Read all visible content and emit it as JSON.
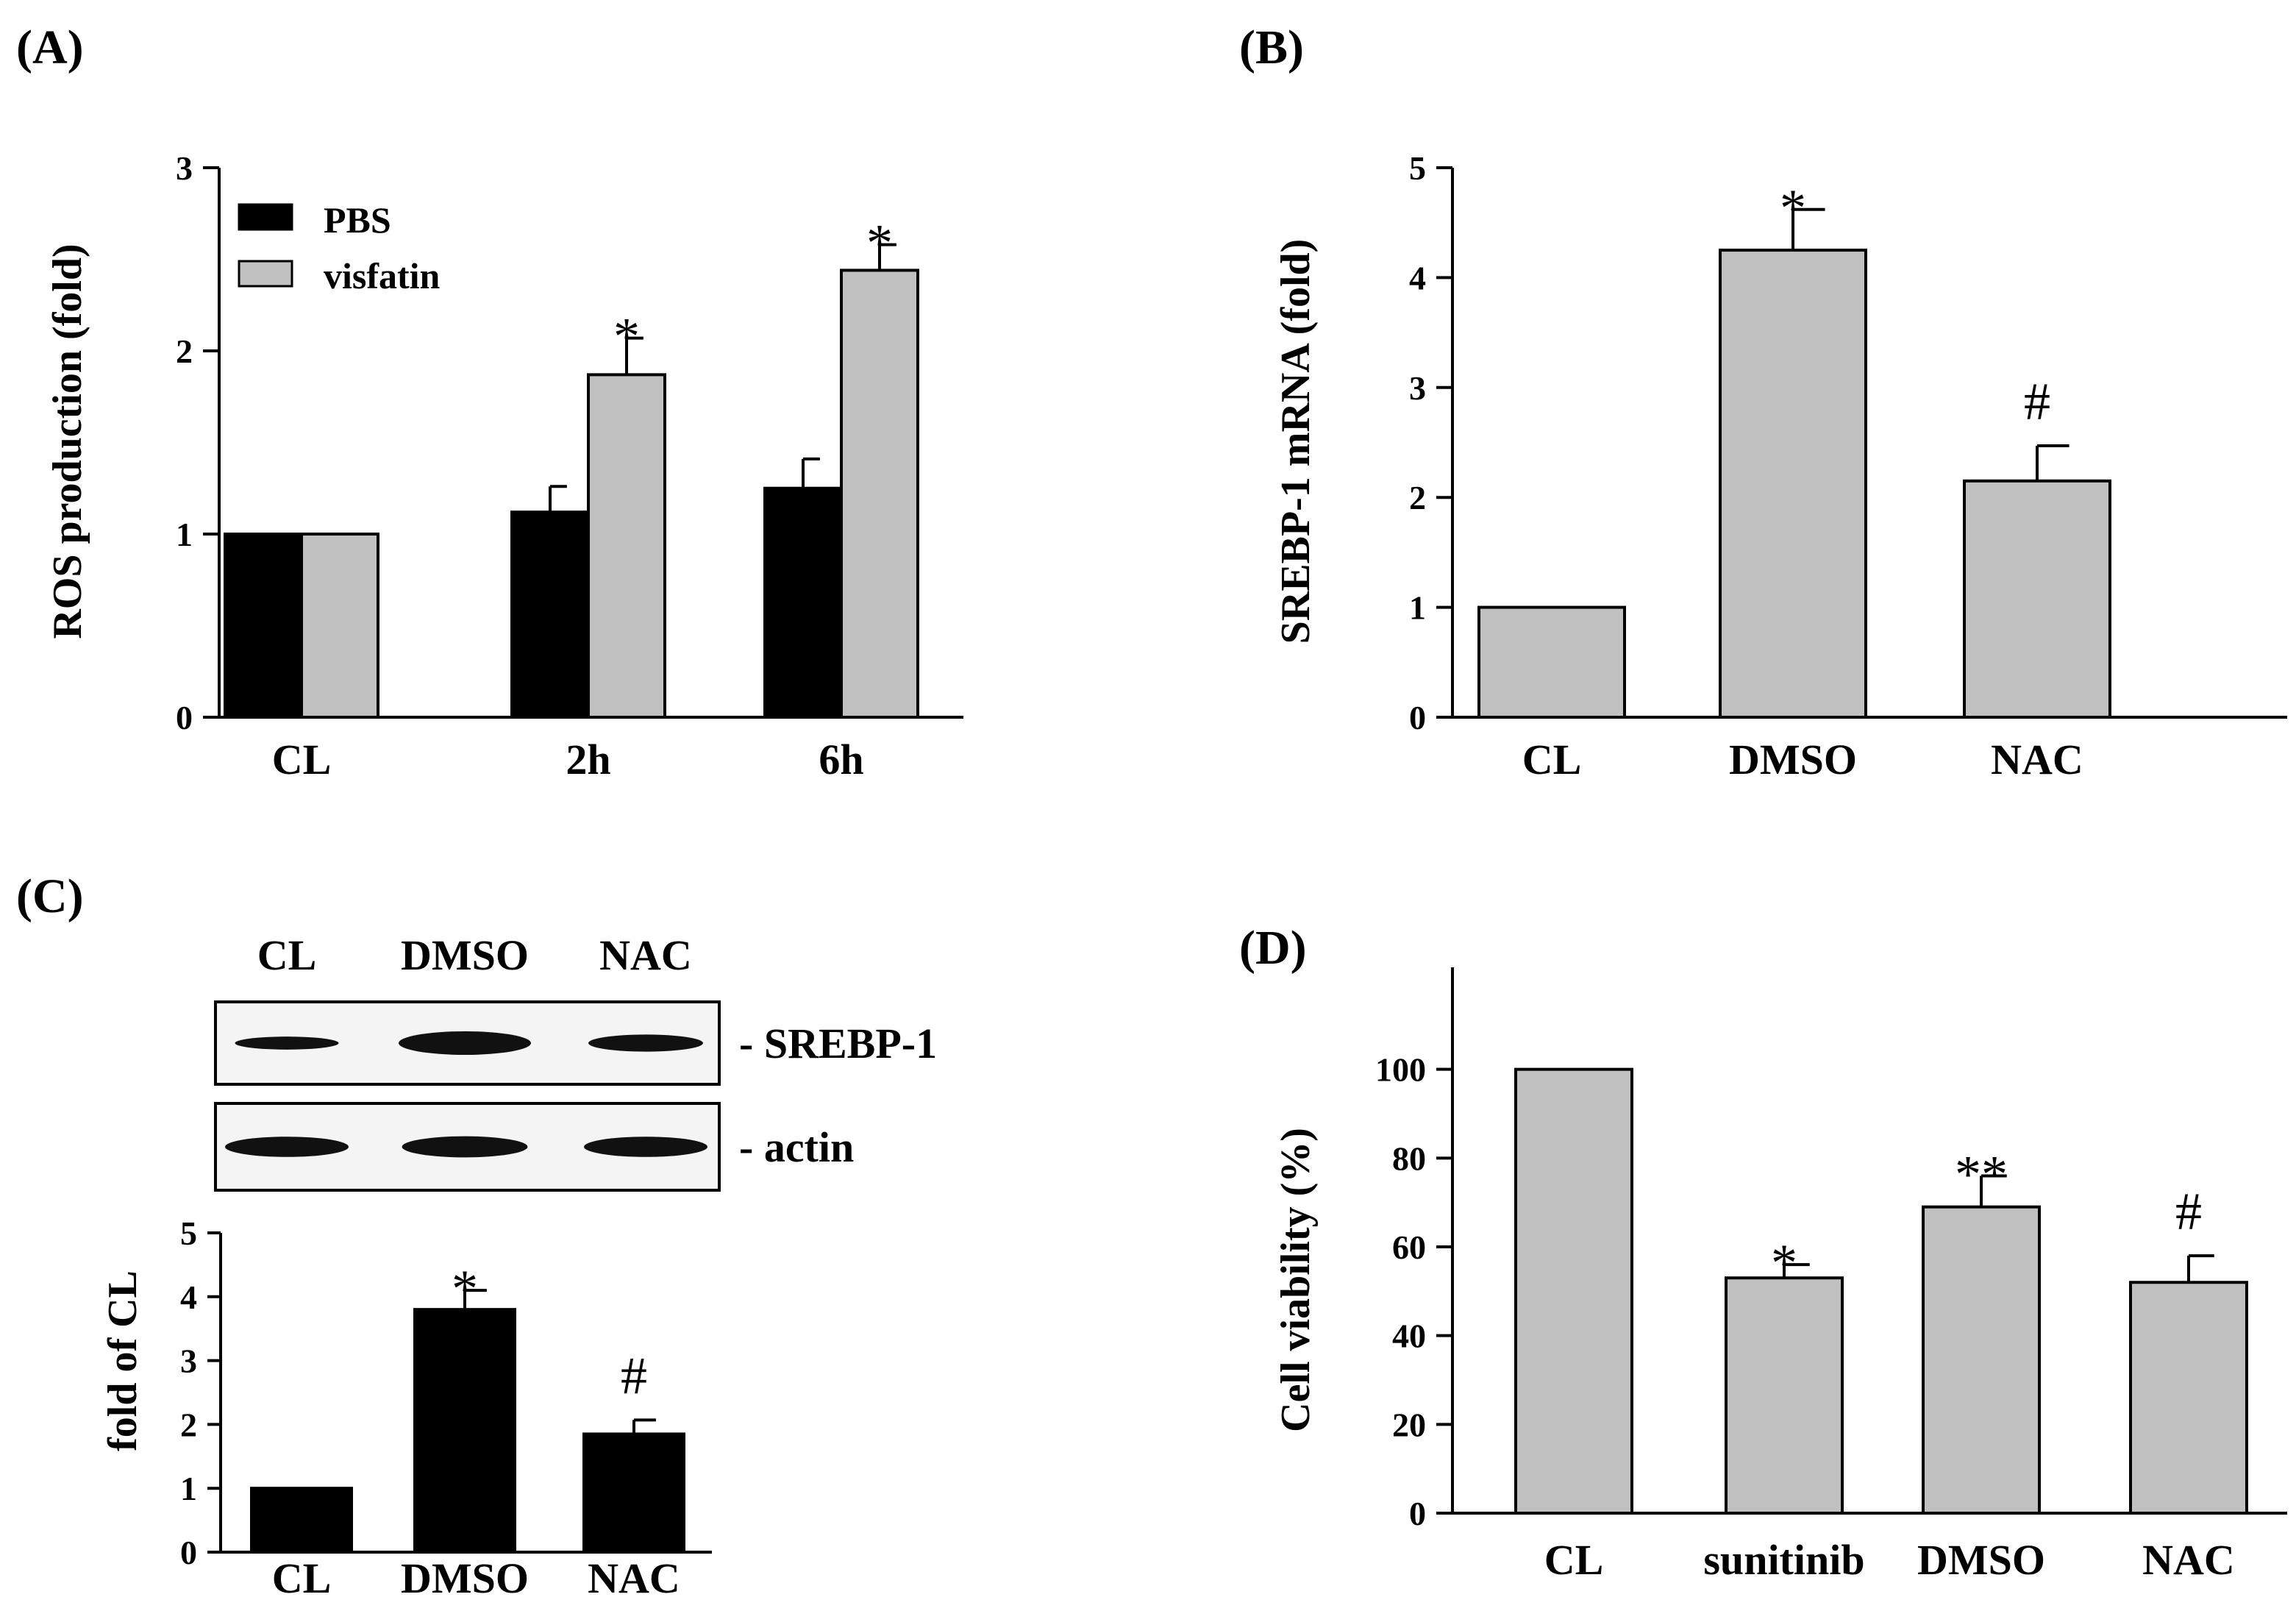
{
  "colors": {
    "black_bar": "#000000",
    "gray_bar": "#c0c0c0",
    "axis": "#000000"
  },
  "chart_data": [
    {
      "id": "A",
      "panel_label": "(A)",
      "type": "bar",
      "title": "",
      "ylabel": "ROS production (fold)",
      "xlabel": "",
      "ylim": [
        0,
        3
      ],
      "yticks": [
        0,
        1,
        2,
        3
      ],
      "categories": [
        "CL",
        "2h",
        "6h"
      ],
      "series": [
        {
          "name": "PBS",
          "color": "#000000",
          "values": [
            1.0,
            1.12,
            1.25
          ],
          "errors": [
            0,
            0.14,
            0.16
          ],
          "annotations": [
            "",
            "",
            ""
          ]
        },
        {
          "name": "visfatin",
          "color": "#c0c0c0",
          "values": [
            1.0,
            1.87,
            2.44
          ],
          "errors": [
            0,
            0.2,
            0.14
          ],
          "annotations": [
            "",
            "*",
            "*"
          ]
        }
      ],
      "legend": "top-left"
    },
    {
      "id": "B",
      "panel_label": "(B)",
      "type": "bar",
      "title": "",
      "ylabel": "SREBP-1 mRNA (fold)",
      "xlabel": "",
      "ylim": [
        0,
        5
      ],
      "yticks": [
        0,
        1,
        2,
        3,
        4,
        5
      ],
      "categories": [
        "CL",
        "DMSO",
        "NAC"
      ],
      "series": [
        {
          "name": "SREBP-1 mRNA",
          "color": "#c0c0c0",
          "values": [
            1.0,
            4.25,
            2.15
          ],
          "errors": [
            0,
            0.37,
            0.32
          ],
          "annotations": [
            "",
            "*",
            "#"
          ]
        }
      ]
    },
    {
      "id": "C",
      "panel_label": "(C)",
      "type": "bar",
      "title": "",
      "ylabel": "fold of CL",
      "xlabel": "",
      "ylim": [
        0,
        5
      ],
      "yticks": [
        0,
        1,
        2,
        3,
        4,
        5
      ],
      "categories": [
        "CL",
        "DMSO",
        "NAC"
      ],
      "series": [
        {
          "name": "fold of CL",
          "color": "#000000",
          "values": [
            1.0,
            3.8,
            1.85
          ],
          "errors": [
            0,
            0.3,
            0.22
          ],
          "annotations": [
            "",
            "*",
            "#"
          ]
        }
      ],
      "blot": {
        "lanes": [
          "CL",
          "DMSO",
          "NAC"
        ],
        "rows": [
          {
            "label": "- SREBP-1",
            "intensities": [
              0.35,
              1.0,
              0.6
            ]
          },
          {
            "label": "- actin",
            "intensities": [
              0.8,
              0.85,
              0.8
            ]
          }
        ]
      }
    },
    {
      "id": "D",
      "panel_label": "(D)",
      "type": "bar",
      "title": "",
      "ylabel": "Cell viability (%)",
      "xlabel": "",
      "ylim": [
        0,
        120
      ],
      "yticks": [
        0,
        20,
        40,
        60,
        80,
        100
      ],
      "categories": [
        "CL",
        "sunitinib",
        "DMSO",
        "NAC"
      ],
      "series": [
        {
          "name": "Cell viability",
          "color": "#c0c0c0",
          "values": [
            100,
            53,
            69,
            52
          ],
          "errors": [
            0,
            3,
            7,
            6
          ],
          "annotations": [
            "",
            "*",
            "**",
            "#"
          ]
        }
      ]
    }
  ]
}
